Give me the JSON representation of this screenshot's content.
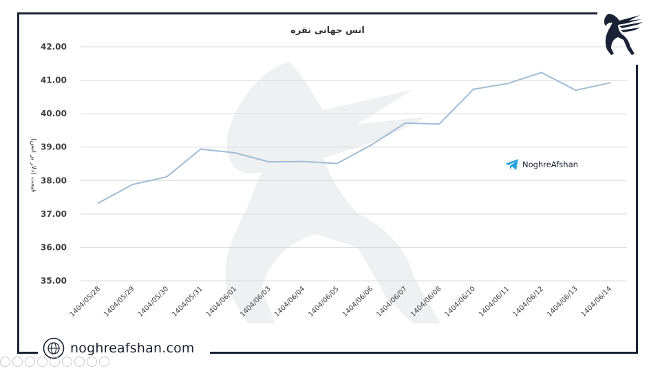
{
  "chart_data": {
    "type": "line",
    "title": "انس جهانی نقره",
    "ylabel": "قیمت (دلار بر انس)",
    "xlabel": "",
    "categories": [
      "1404/05/28",
      "1404/05/29",
      "1404/05/30",
      "1404/05/31",
      "1404/06/01",
      "1404/06/03",
      "1404/06/04",
      "1404/06/05",
      "1404/06/06",
      "1404/06/07",
      "1404/06/08",
      "1404/06/10",
      "1404/06/11",
      "1404/06/12",
      "1404/06/13",
      "1404/06/14"
    ],
    "series": [
      {
        "values": [
          37.33,
          37.88,
          38.11,
          38.94,
          38.83,
          38.56,
          38.57,
          38.51,
          39.06,
          39.72,
          39.69,
          40.73,
          40.9,
          41.23,
          40.7,
          40.92
        ]
      }
    ],
    "ylim": [
      35.0,
      42.0
    ],
    "yticks": [
      "42.00",
      "41.00",
      "40.00",
      "39.00",
      "38.00",
      "37.00",
      "36.00",
      "35.00"
    ],
    "grid": true,
    "line_color": "#9fbcd6"
  },
  "brand": {
    "website": "noghreafshan.com",
    "telegram": "NoghreAfshan",
    "logo_icon": "winged-goat-logo-icon",
    "globe_icon": "globe-icon",
    "telegram_icon": "telegram-icon"
  }
}
